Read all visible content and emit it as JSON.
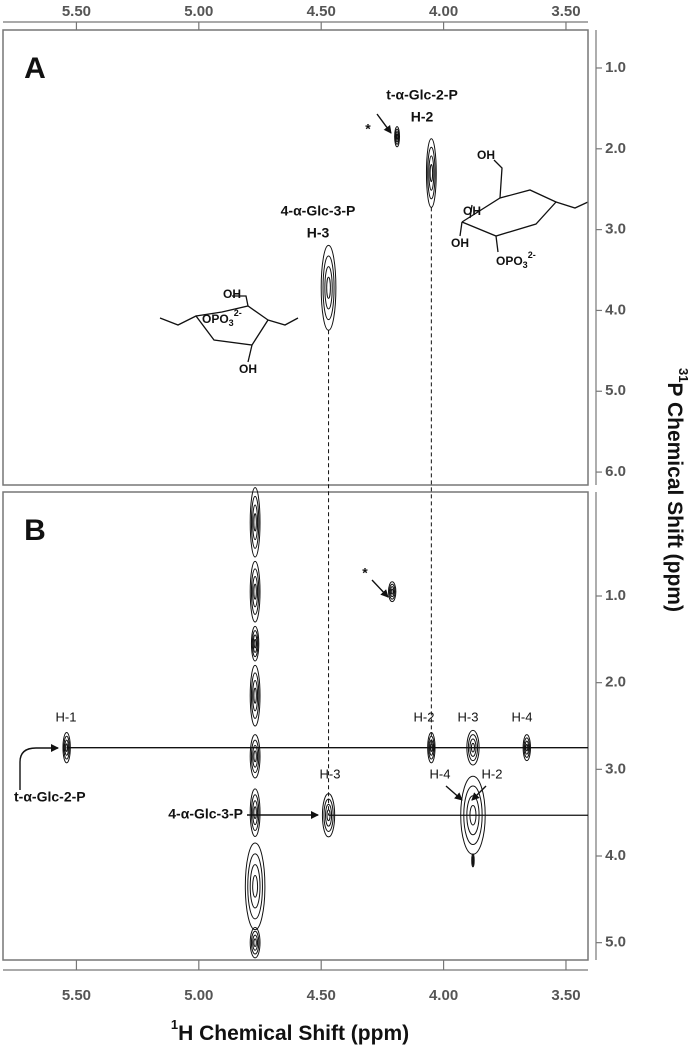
{
  "chart_data": {
    "type": "nmr2d",
    "x_label": {
      "sup": "1",
      "text": "H Chemical Shift (ppm)"
    },
    "y_label": {
      "sup": "31",
      "text": "P Chemical Shift (ppm)"
    },
    "xlim": [
      5.8,
      3.41
    ],
    "xticks": [
      {
        "value": 5.5,
        "label": "5.50"
      },
      {
        "value": 5,
        "label": "5.00"
      },
      {
        "value": 4.5,
        "label": "4.50"
      },
      {
        "value": 4,
        "label": "4.00"
      },
      {
        "value": 3.5,
        "label": "3.50"
      }
    ],
    "panels": [
      {
        "label": "A",
        "ylim": [
          0.53,
          6.16
        ],
        "yticks": [
          {
            "value": 1,
            "label": "1.0"
          },
          {
            "value": 2,
            "label": "2.0"
          },
          {
            "value": 3,
            "label": "3.0"
          },
          {
            "value": 4,
            "label": "4.0"
          },
          {
            "value": 5,
            "label": "5.0"
          },
          {
            "value": 6,
            "label": "6.0"
          }
        ],
        "peaks": [
          {
            "x": 4.19,
            "y": 1.85,
            "w": 0.02,
            "h": 0.25
          },
          {
            "x": 4.05,
            "y": 2.3,
            "w": 0.04,
            "h": 0.85
          },
          {
            "x": 4.47,
            "y": 3.72,
            "w": 0.06,
            "h": 1.05
          }
        ],
        "annotations": [
          "*",
          "t-α-Glc-2-P",
          "H-2",
          "4-α-Glc-3-P",
          "H-3"
        ],
        "structure_labels": [
          "OH",
          "OPO",
          "3",
          "2-",
          "OH",
          "OH",
          "OH",
          "OH",
          "OPO",
          "3",
          "2-"
        ]
      },
      {
        "label": "B",
        "ylim": [
          -0.2,
          5.2
        ],
        "yticks": [
          {
            "value": 1,
            "label": "1.0"
          },
          {
            "value": 2,
            "label": "2.0"
          },
          {
            "value": 3,
            "label": "3.0"
          },
          {
            "value": 4,
            "label": "4.0"
          },
          {
            "value": 5,
            "label": "5.0"
          }
        ],
        "rows": [
          {
            "label": "t-α-Glc-2-P",
            "y": 2.75,
            "x_start": 5.54
          },
          {
            "label": "4-α-Glc-3-P",
            "y": 3.53,
            "x_start": 4.47
          }
        ],
        "peaks": [
          {
            "x": 4.77,
            "y": 0.15,
            "w": 0.04,
            "h": 0.8
          },
          {
            "x": 4.77,
            "y": 0.95,
            "w": 0.04,
            "h": 0.7
          },
          {
            "x": 4.77,
            "y": 1.55,
            "w": 0.03,
            "h": 0.4
          },
          {
            "x": 4.77,
            "y": 2.15,
            "w": 0.04,
            "h": 0.7
          },
          {
            "x": 4.77,
            "y": 2.85,
            "w": 0.04,
            "h": 0.5
          },
          {
            "x": 4.77,
            "y": 3.5,
            "w": 0.04,
            "h": 0.55
          },
          {
            "x": 4.77,
            "y": 4.35,
            "w": 0.08,
            "h": 1.0
          },
          {
            "x": 4.77,
            "y": 5.0,
            "w": 0.04,
            "h": 0.35
          },
          {
            "x": 4.21,
            "y": 0.95,
            "w": 0.03,
            "h": 0.23
          },
          {
            "x": 5.54,
            "y": 2.75,
            "w": 0.03,
            "h": 0.35
          },
          {
            "x": 4.05,
            "y": 2.75,
            "w": 0.03,
            "h": 0.35
          },
          {
            "x": 3.88,
            "y": 2.75,
            "w": 0.05,
            "h": 0.4
          },
          {
            "x": 3.66,
            "y": 2.75,
            "w": 0.03,
            "h": 0.3
          },
          {
            "x": 4.47,
            "y": 3.53,
            "w": 0.05,
            "h": 0.5
          },
          {
            "x": 3.88,
            "y": 3.53,
            "w": 0.1,
            "h": 0.9
          },
          {
            "x": 3.88,
            "y": 4.05,
            "w": 0.01,
            "h": 0.15
          }
        ],
        "annotations": [
          "*",
          "H-1",
          "H-2",
          "H-3",
          "H-4",
          "H-3",
          "H-4",
          "H-2"
        ]
      }
    ]
  }
}
